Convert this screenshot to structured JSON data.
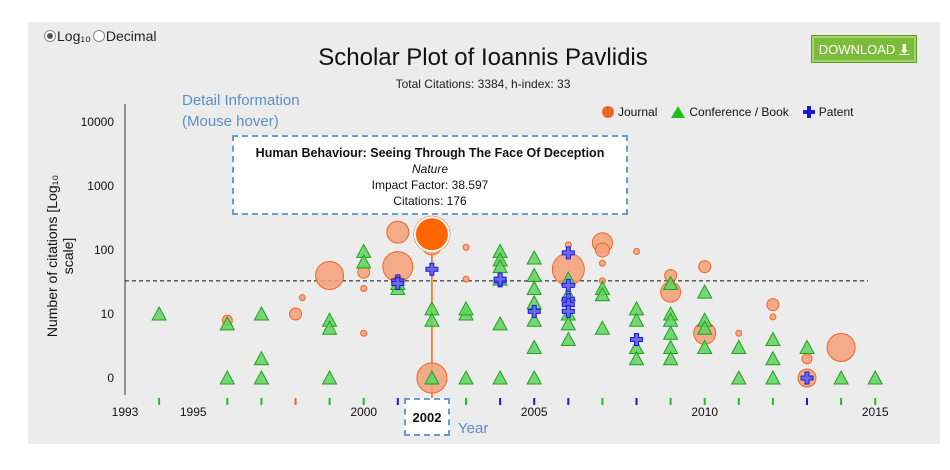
{
  "scale_toggle": {
    "option_log": "Log₁₀",
    "option_decimal": "Decimal",
    "selected": "log"
  },
  "download": {
    "label": "DOWNLOAD"
  },
  "header": {
    "title": "Scholar Plot of Ioannis Pavlidis",
    "subtitle": "Total Citations: 3384, h-index: 33"
  },
  "annotations": {
    "detail": "Detail Information (Mouse hover)",
    "year": "Year"
  },
  "tooltip": {
    "title": "Human Behaviour: Seeing Through The Face Of Deception",
    "journal": "Nature",
    "impact": "Impact Factor: 38.597",
    "citations": "Citations: 176"
  },
  "hover_year": "2002",
  "colors": {
    "journal": "#f26522",
    "journal_fill": "#f4a078",
    "conference": "#1fbf1f",
    "patent": "#1a1ad6",
    "highlight": "#ff6600",
    "background": "#ececec"
  },
  "chart_data": {
    "type": "scatter",
    "title": "Scholar Plot of Ioannis Pavlidis",
    "subtitle": "Total Citations: 3384, h-index: 33",
    "xlabel": "Year",
    "ylabel": "Number of citations [Log₁₀ scale]",
    "log_y": true,
    "xlim": [
      1993,
      2015
    ],
    "x_ticks": [
      "1993",
      "1995",
      "2000",
      "2005",
      "2010",
      "2015"
    ],
    "y_ticks": [
      {
        "value": 0,
        "label": "0"
      },
      {
        "value": 10,
        "label": "10"
      },
      {
        "value": 100,
        "label": "100"
      },
      {
        "value": 1000,
        "label": "1000"
      },
      {
        "value": 10000,
        "label": "10000"
      }
    ],
    "h_index_line": 33,
    "legend": [
      "Journal",
      "Conference / Book",
      "Patent"
    ],
    "legend_position": "top-right",
    "journal": [
      {
        "x": 1996,
        "y": 8,
        "r": 5
      },
      {
        "x": 1998,
        "y": 10,
        "r": 6
      },
      {
        "x": 1998.2,
        "y": 18,
        "r": 3
      },
      {
        "x": 1999,
        "y": 40,
        "r": 14
      },
      {
        "x": 2000,
        "y": 5,
        "r": 3
      },
      {
        "x": 2000,
        "y": 25,
        "r": 3
      },
      {
        "x": 2000,
        "y": 45,
        "r": 6
      },
      {
        "x": 2001,
        "y": 55,
        "r": 15
      },
      {
        "x": 2001,
        "y": 190,
        "r": 11
      },
      {
        "x": 2001,
        "y": 35,
        "r": 4
      },
      {
        "x": 2002,
        "y": 176,
        "r": 18
      },
      {
        "x": 2002,
        "y": 1,
        "r": 15
      },
      {
        "x": 2002,
        "y": 120,
        "r": 10
      },
      {
        "x": 2003,
        "y": 35,
        "r": 3
      },
      {
        "x": 2003,
        "y": 110,
        "r": 3
      },
      {
        "x": 2006,
        "y": 50,
        "r": 16
      },
      {
        "x": 2006,
        "y": 120,
        "r": 3
      },
      {
        "x": 2007,
        "y": 130,
        "r": 10
      },
      {
        "x": 2007,
        "y": 100,
        "r": 7
      },
      {
        "x": 2007,
        "y": 62,
        "r": 3
      },
      {
        "x": 2007,
        "y": 33,
        "r": 3
      },
      {
        "x": 2008,
        "y": 95,
        "r": 3
      },
      {
        "x": 2009,
        "y": 40,
        "r": 6
      },
      {
        "x": 2009,
        "y": 22,
        "r": 10
      },
      {
        "x": 2010,
        "y": 55,
        "r": 6
      },
      {
        "x": 2010,
        "y": 5,
        "r": 11
      },
      {
        "x": 2011,
        "y": 5,
        "r": 3
      },
      {
        "x": 2012,
        "y": 14,
        "r": 6
      },
      {
        "x": 2012,
        "y": 9,
        "r": 3
      },
      {
        "x": 2013,
        "y": 2,
        "r": 5
      },
      {
        "x": 2013,
        "y": 1,
        "r": 9
      },
      {
        "x": 2014,
        "y": 3,
        "r": 14
      }
    ],
    "conference": [
      {
        "x": 1994,
        "y": 10
      },
      {
        "x": 1996,
        "y": 7
      },
      {
        "x": 1996,
        "y": 1
      },
      {
        "x": 1997,
        "y": 10
      },
      {
        "x": 1997,
        "y": 2
      },
      {
        "x": 1997,
        "y": 1
      },
      {
        "x": 1999,
        "y": 8
      },
      {
        "x": 1999,
        "y": 6
      },
      {
        "x": 1999,
        "y": 1
      },
      {
        "x": 2000,
        "y": 95
      },
      {
        "x": 2000,
        "y": 65
      },
      {
        "x": 2001,
        "y": 25
      },
      {
        "x": 2001,
        "y": 30
      },
      {
        "x": 2002,
        "y": 12
      },
      {
        "x": 2002,
        "y": 8
      },
      {
        "x": 2002,
        "y": 1
      },
      {
        "x": 2003,
        "y": 10
      },
      {
        "x": 2003,
        "y": 12
      },
      {
        "x": 2003,
        "y": 1
      },
      {
        "x": 2004,
        "y": 95
      },
      {
        "x": 2004,
        "y": 70
      },
      {
        "x": 2004,
        "y": 55
      },
      {
        "x": 2004,
        "y": 35
      },
      {
        "x": 2004,
        "y": 7
      },
      {
        "x": 2004,
        "y": 1
      },
      {
        "x": 2005,
        "y": 75
      },
      {
        "x": 2005,
        "y": 40
      },
      {
        "x": 2005,
        "y": 25
      },
      {
        "x": 2005,
        "y": 15
      },
      {
        "x": 2005,
        "y": 8
      },
      {
        "x": 2005,
        "y": 3
      },
      {
        "x": 2005,
        "y": 1
      },
      {
        "x": 2006,
        "y": 35
      },
      {
        "x": 2006,
        "y": 20
      },
      {
        "x": 2006,
        "y": 10
      },
      {
        "x": 2006,
        "y": 7
      },
      {
        "x": 2006,
        "y": 4
      },
      {
        "x": 2007,
        "y": 25
      },
      {
        "x": 2007,
        "y": 20
      },
      {
        "x": 2007,
        "y": 6
      },
      {
        "x": 2008,
        "y": 12
      },
      {
        "x": 2008,
        "y": 8
      },
      {
        "x": 2008,
        "y": 3
      },
      {
        "x": 2008,
        "y": 2
      },
      {
        "x": 2009,
        "y": 30
      },
      {
        "x": 2009,
        "y": 10
      },
      {
        "x": 2009,
        "y": 8
      },
      {
        "x": 2009,
        "y": 5
      },
      {
        "x": 2009,
        "y": 3
      },
      {
        "x": 2009,
        "y": 2
      },
      {
        "x": 2010,
        "y": 22
      },
      {
        "x": 2010,
        "y": 8
      },
      {
        "x": 2010,
        "y": 6
      },
      {
        "x": 2010,
        "y": 3
      },
      {
        "x": 2011,
        "y": 3
      },
      {
        "x": 2011,
        "y": 1
      },
      {
        "x": 2012,
        "y": 4
      },
      {
        "x": 2012,
        "y": 2
      },
      {
        "x": 2012,
        "y": 1
      },
      {
        "x": 2013,
        "y": 3
      },
      {
        "x": 2014,
        "y": 1
      },
      {
        "x": 2015,
        "y": 1
      }
    ],
    "patent": [
      {
        "x": 2001,
        "y": 33
      },
      {
        "x": 2001,
        "y": 30
      },
      {
        "x": 2002,
        "y": 50
      },
      {
        "x": 2004,
        "y": 33
      },
      {
        "x": 2004,
        "y": 35
      },
      {
        "x": 2005,
        "y": 11
      },
      {
        "x": 2006,
        "y": 90
      },
      {
        "x": 2006,
        "y": 28
      },
      {
        "x": 2006,
        "y": 17
      },
      {
        "x": 2006,
        "y": 14
      },
      {
        "x": 2006,
        "y": 11
      },
      {
        "x": 2008,
        "y": 4
      },
      {
        "x": 2013,
        "y": 1
      }
    ],
    "year_markers": [
      {
        "x": 1994,
        "kind": "conference"
      },
      {
        "x": 1996,
        "kind": "conference"
      },
      {
        "x": 1997,
        "kind": "conference"
      },
      {
        "x": 1998,
        "kind": "journal"
      },
      {
        "x": 1999,
        "kind": "conference"
      },
      {
        "x": 2000,
        "kind": "conference"
      },
      {
        "x": 2001,
        "kind": "patent"
      },
      {
        "x": 2002,
        "kind": "conference"
      },
      {
        "x": 2003,
        "kind": "conference"
      },
      {
        "x": 2004,
        "kind": "patent"
      },
      {
        "x": 2005,
        "kind": "patent"
      },
      {
        "x": 2006,
        "kind": "patent"
      },
      {
        "x": 2007,
        "kind": "conference"
      },
      {
        "x": 2008,
        "kind": "patent"
      },
      {
        "x": 2009,
        "kind": "conference"
      },
      {
        "x": 2010,
        "kind": "conference"
      },
      {
        "x": 2011,
        "kind": "conference"
      },
      {
        "x": 2012,
        "kind": "conference"
      },
      {
        "x": 2013,
        "kind": "patent"
      },
      {
        "x": 2014,
        "kind": "conference"
      },
      {
        "x": 2015,
        "kind": "conference"
      }
    ],
    "highlight": {
      "x": 2002,
      "y": 176
    }
  }
}
